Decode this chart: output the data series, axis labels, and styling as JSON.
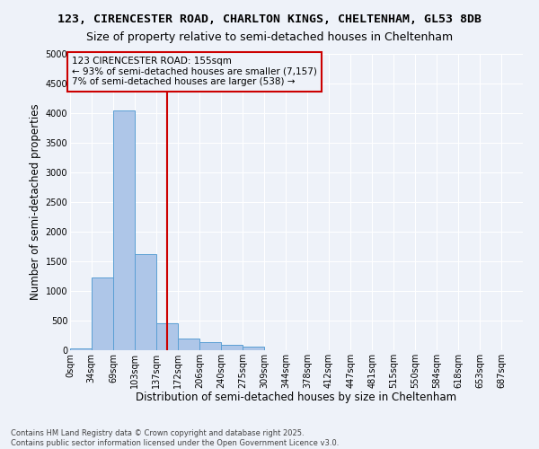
{
  "title_line1": "123, CIRENCESTER ROAD, CHARLTON KINGS, CHELTENHAM, GL53 8DB",
  "title_line2": "Size of property relative to semi-detached houses in Cheltenham",
  "xlabel": "Distribution of semi-detached houses by size in Cheltenham",
  "ylabel": "Number of semi-detached properties",
  "bin_labels": [
    "0sqm",
    "34sqm",
    "69sqm",
    "103sqm",
    "137sqm",
    "172sqm",
    "206sqm",
    "240sqm",
    "275sqm",
    "309sqm",
    "344sqm",
    "378sqm",
    "412sqm",
    "447sqm",
    "481sqm",
    "515sqm",
    "550sqm",
    "584sqm",
    "618sqm",
    "653sqm",
    "687sqm"
  ],
  "bin_edges": [
    0,
    34,
    69,
    103,
    137,
    172,
    206,
    240,
    275,
    309,
    344,
    378,
    412,
    447,
    481,
    515,
    550,
    584,
    618,
    653,
    687
  ],
  "bar_heights": [
    30,
    1230,
    4050,
    1620,
    460,
    200,
    130,
    85,
    65,
    0,
    0,
    0,
    0,
    0,
    0,
    0,
    0,
    0,
    0,
    0
  ],
  "bar_color": "#aec6e8",
  "bar_edge_color": "#5a9fd4",
  "property_size": 155,
  "property_line_color": "#cc0000",
  "annotation_line1": "123 CIRENCESTER ROAD: 155sqm",
  "annotation_line2": "← 93% of semi-detached houses are smaller (7,157)",
  "annotation_line3": "7% of semi-detached houses are larger (538) →",
  "annotation_box_color": "#cc0000",
  "ylim": [
    0,
    5000
  ],
  "yticks": [
    0,
    500,
    1000,
    1500,
    2000,
    2500,
    3000,
    3500,
    4000,
    4500,
    5000
  ],
  "footnote": "Contains HM Land Registry data © Crown copyright and database right 2025.\nContains public sector information licensed under the Open Government Licence v3.0.",
  "bg_color": "#eef2f9",
  "grid_color": "#ffffff",
  "title1_fontsize": 9.5,
  "title2_fontsize": 9,
  "axis_label_fontsize": 8.5,
  "tick_fontsize": 7,
  "annot_fontsize": 7.5
}
